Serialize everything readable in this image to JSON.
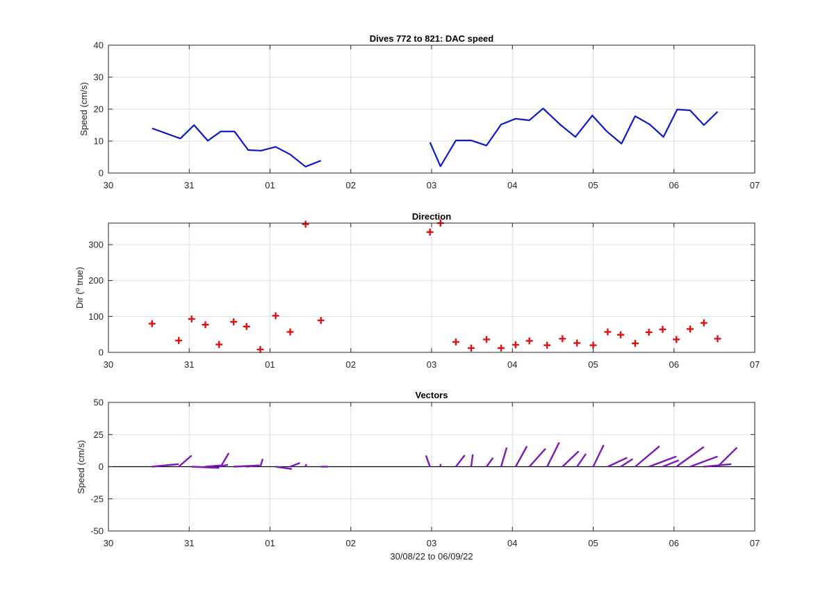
{
  "figure": {
    "xlabel": "30/08/22 to 06/09/22"
  },
  "chart_data": [
    {
      "type": "line",
      "title": "Dives 772 to 821: DAC speed",
      "ylabel": "Speed (cm/s)",
      "xlabel": "",
      "xlim": [
        0,
        8
      ],
      "ylim": [
        0,
        40
      ],
      "xticks": [
        0,
        1,
        2,
        3,
        4,
        5,
        6,
        7,
        8
      ],
      "xticklabels": [
        "30",
        "31",
        "01",
        "02",
        "03",
        "04",
        "05",
        "06",
        "07"
      ],
      "yticks": [
        0,
        10,
        20,
        30,
        40
      ],
      "grid": true,
      "color": "#0a18c8",
      "series": [
        {
          "x": [
            0.54,
            0.89,
            1.06,
            1.23,
            1.39,
            1.56,
            1.73,
            1.89,
            2.07,
            2.25,
            2.44,
            2.63
          ],
          "y": [
            14.0,
            10.8,
            15.0,
            10.1,
            13.0,
            13.0,
            7.2,
            7.0,
            8.2,
            5.8,
            2.0,
            3.9
          ]
        },
        {
          "x": [
            3.98,
            4.11,
            4.3,
            4.49,
            4.68,
            4.86,
            5.04,
            5.21,
            5.38,
            5.59,
            5.78,
            5.99,
            6.17,
            6.35,
            6.52,
            6.7,
            6.87,
            7.04,
            7.2,
            7.37,
            7.54
          ],
          "y": [
            9.6,
            2.1,
            10.2,
            10.2,
            8.6,
            15.2,
            17.0,
            16.5,
            20.2,
            15.2,
            11.3,
            18.0,
            13.0,
            9.2,
            17.8,
            15.2,
            11.3,
            19.9,
            19.6,
            15.0,
            19.2
          ]
        }
      ]
    },
    {
      "type": "scatter",
      "title": "Direction",
      "ylabel": "Dir (° true)",
      "ylabel_parts": {
        "pre": "Dir (",
        "sup": "o",
        "post": " true)"
      },
      "xlabel": "",
      "xlim": [
        0,
        8
      ],
      "ylim": [
        0,
        360
      ],
      "xticks": [
        0,
        1,
        2,
        3,
        4,
        5,
        6,
        7,
        8
      ],
      "xticklabels": [
        "30",
        "31",
        "01",
        "02",
        "03",
        "04",
        "05",
        "06",
        "07"
      ],
      "yticks": [
        0,
        100,
        200,
        300
      ],
      "grid": true,
      "marker": "+",
      "color": "#e01010",
      "points": [
        {
          "x": 0.54,
          "y": 80
        },
        {
          "x": 0.87,
          "y": 33
        },
        {
          "x": 1.03,
          "y": 93
        },
        {
          "x": 1.2,
          "y": 77
        },
        {
          "x": 1.37,
          "y": 22
        },
        {
          "x": 1.55,
          "y": 85
        },
        {
          "x": 1.71,
          "y": 72
        },
        {
          "x": 1.88,
          "y": 8
        },
        {
          "x": 2.07,
          "y": 102
        },
        {
          "x": 2.25,
          "y": 57
        },
        {
          "x": 2.44,
          "y": 357
        },
        {
          "x": 2.63,
          "y": 89
        },
        {
          "x": 3.98,
          "y": 335
        },
        {
          "x": 4.11,
          "y": 360
        },
        {
          "x": 4.3,
          "y": 29
        },
        {
          "x": 4.49,
          "y": 12
        },
        {
          "x": 4.68,
          "y": 36
        },
        {
          "x": 4.86,
          "y": 12
        },
        {
          "x": 5.04,
          "y": 21
        },
        {
          "x": 5.21,
          "y": 32
        },
        {
          "x": 5.43,
          "y": 20
        },
        {
          "x": 5.62,
          "y": 38
        },
        {
          "x": 5.8,
          "y": 26
        },
        {
          "x": 6.0,
          "y": 20
        },
        {
          "x": 6.18,
          "y": 57
        },
        {
          "x": 6.34,
          "y": 49
        },
        {
          "x": 6.52,
          "y": 25
        },
        {
          "x": 6.69,
          "y": 56
        },
        {
          "x": 6.86,
          "y": 64
        },
        {
          "x": 7.03,
          "y": 36
        },
        {
          "x": 7.2,
          "y": 65
        },
        {
          "x": 7.37,
          "y": 82
        },
        {
          "x": 7.54,
          "y": 38
        }
      ]
    },
    {
      "type": "vector",
      "title": "Vectors",
      "ylabel": "Speed (cm/s)",
      "xlabel": "30/08/22 to 06/09/22",
      "xlim": [
        0,
        8
      ],
      "ylim": [
        -50,
        50
      ],
      "xticks": [
        0,
        1,
        2,
        3,
        4,
        5,
        6,
        7,
        8
      ],
      "xticklabels": [
        "30",
        "31",
        "01",
        "02",
        "03",
        "04",
        "05",
        "06",
        "07"
      ],
      "yticks": [
        -50,
        -25,
        0,
        25,
        50
      ],
      "grid": true,
      "zero_line": true,
      "color": "#7a18b8",
      "vectors": [
        {
          "x": 0.54,
          "dx": 0.33,
          "dy": 2.0
        },
        {
          "x": 0.87,
          "dx": 0.16,
          "dy": 8.7
        },
        {
          "x": 1.03,
          "dx": 0.34,
          "dy": -1.0
        },
        {
          "x": 1.2,
          "dx": 0.19,
          "dy": 1.0
        },
        {
          "x": 1.37,
          "dx": 0.11,
          "dy": 1.6
        },
        {
          "x": 1.39,
          "dx": 0.1,
          "dy": 10.6
        },
        {
          "x": 1.55,
          "dx": 0.32,
          "dy": 1.0
        },
        {
          "x": 1.71,
          "dx": 0.16,
          "dy": 1.0
        },
        {
          "x": 1.88,
          "dx": 0.03,
          "dy": 6.0
        },
        {
          "x": 2.07,
          "dx": 0.2,
          "dy": -1.8
        },
        {
          "x": 2.25,
          "dx": 0.12,
          "dy": 2.9
        },
        {
          "x": 2.44,
          "dx": 0.01,
          "dy": 2.0
        },
        {
          "x": 2.63,
          "dx": 0.09,
          "dy": 0.0
        },
        {
          "x": 3.98,
          "dx": -0.05,
          "dy": 8.7
        },
        {
          "x": 4.11,
          "dx": 0.0,
          "dy": 2.1
        },
        {
          "x": 4.3,
          "dx": 0.11,
          "dy": 8.9
        },
        {
          "x": 4.49,
          "dx": 0.02,
          "dy": 9.6
        },
        {
          "x": 4.68,
          "dx": 0.08,
          "dy": 6.9
        },
        {
          "x": 4.86,
          "dx": 0.07,
          "dy": 14.9
        },
        {
          "x": 5.04,
          "dx": 0.14,
          "dy": 15.9
        },
        {
          "x": 5.21,
          "dx": 0.2,
          "dy": 14.0
        },
        {
          "x": 5.43,
          "dx": 0.15,
          "dy": 18.9
        },
        {
          "x": 5.62,
          "dx": 0.2,
          "dy": 12.0
        },
        {
          "x": 5.8,
          "dx": 0.11,
          "dy": 10.0
        },
        {
          "x": 6.0,
          "dx": 0.13,
          "dy": 16.9
        },
        {
          "x": 6.18,
          "dx": 0.24,
          "dy": 7.0
        },
        {
          "x": 6.34,
          "dx": 0.15,
          "dy": 6.0
        },
        {
          "x": 6.52,
          "dx": 0.3,
          "dy": 15.9
        },
        {
          "x": 6.69,
          "dx": 0.34,
          "dy": 8.0
        },
        {
          "x": 6.86,
          "dx": 0.2,
          "dy": 5.0
        },
        {
          "x": 7.03,
          "dx": 0.34,
          "dy": 15.4
        },
        {
          "x": 7.2,
          "dx": 0.34,
          "dy": 8.0
        },
        {
          "x": 7.37,
          "dx": 0.34,
          "dy": 2.0
        },
        {
          "x": 7.54,
          "dx": 0.24,
          "dy": 14.9
        }
      ]
    }
  ]
}
